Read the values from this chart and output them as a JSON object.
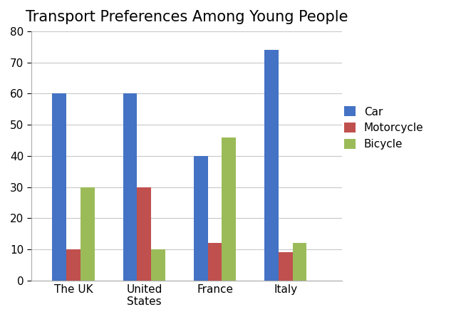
{
  "title": "Transport Preferences Among Young People",
  "categories": [
    "The UK",
    "United\nStates",
    "France",
    "Italy"
  ],
  "series": [
    {
      "label": "Car",
      "color": "#4472C4",
      "values": [
        60,
        60,
        40,
        74
      ]
    },
    {
      "label": "Motorcycle",
      "color": "#C0504D",
      "values": [
        10,
        30,
        12,
        9
      ]
    },
    {
      "label": "Bicycle",
      "color": "#9BBB59",
      "values": [
        30,
        10,
        46,
        12
      ]
    }
  ],
  "ylim": [
    0,
    80
  ],
  "yticks": [
    0,
    10,
    20,
    30,
    40,
    50,
    60,
    70,
    80
  ],
  "bar_width": 0.2,
  "title_fontsize": 15,
  "tick_fontsize": 11,
  "legend_fontsize": 11,
  "background_color": "#FFFFFF",
  "grid_color": "#C8C8C8"
}
